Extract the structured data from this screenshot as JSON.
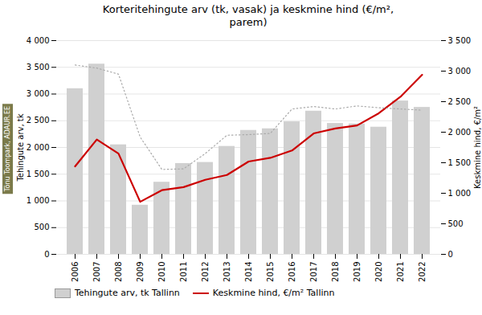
{
  "chart_data": {
    "type": "bar",
    "title": "Korteritehingute arv (tk, vasak) ja keskmine hind (€/m²,\nparem)",
    "ylabel": "Tehingute arv, tk",
    "y2label": "Keskmine hind, €/m²",
    "annotations": [
      "Tõnu Toompark, ADAUR.EE"
    ],
    "categories": [
      "2006",
      "2007",
      "2008",
      "2009",
      "2010",
      "2011",
      "2012",
      "2013",
      "2014",
      "2015",
      "2016",
      "2017",
      "2018",
      "2019",
      "2020",
      "2021",
      "2022"
    ],
    "series": [
      {
        "name": "Tehingute arv, tk Tallinn",
        "type": "bar",
        "color": "#d0d0d0",
        "values": [
          3100,
          3560,
          2050,
          920,
          1350,
          1700,
          1720,
          2020,
          2320,
          2350,
          2480,
          2680,
          2450,
          2440,
          2380,
          2870,
          2750
        ]
      },
      {
        "name": "Keskmine hind, €/m² Tallinn",
        "type": "line",
        "axis": "y2",
        "color": "#cc0000",
        "values": [
          1440,
          1880,
          1650,
          860,
          1050,
          1100,
          1220,
          1300,
          1520,
          1580,
          1700,
          1980,
          2060,
          2110,
          2310,
          2580,
          2940
        ]
      },
      {
        "type": "line",
        "axis": "y2",
        "color": "#aaaaaa",
        "line_style": "dotted",
        "values": [
          3100,
          3050,
          2950,
          1920,
          1390,
          1400,
          1650,
          1950,
          1960,
          1980,
          2380,
          2420,
          2380,
          2430,
          2400,
          2380,
          2360
        ]
      }
    ],
    "ylim": [
      0,
      4000
    ],
    "yticks": [
      0,
      500,
      {
        "value": 1000,
        "label": "1 000"
      },
      {
        "value": 1500,
        "label": "1 500"
      },
      {
        "value": 2000,
        "label": "2 000"
      },
      {
        "value": 2500,
        "label": "2 500"
      },
      {
        "value": 3000,
        "label": "3 000"
      },
      {
        "value": 3500,
        "label": "3 500"
      },
      {
        "value": 4000,
        "label": "4 000"
      }
    ],
    "y2lim": [
      0,
      3500
    ],
    "y2ticks": [
      0,
      500,
      {
        "value": 1000,
        "label": "1 000"
      },
      {
        "value": 1500,
        "label": "1 500"
      },
      {
        "value": 2000,
        "label": "2 000"
      },
      {
        "value": 2500,
        "label": "2 500"
      },
      {
        "value": 3000,
        "label": "3 000"
      },
      {
        "value": 3500,
        "label": "3 500"
      }
    ],
    "grid": true,
    "legend": "lower left"
  }
}
